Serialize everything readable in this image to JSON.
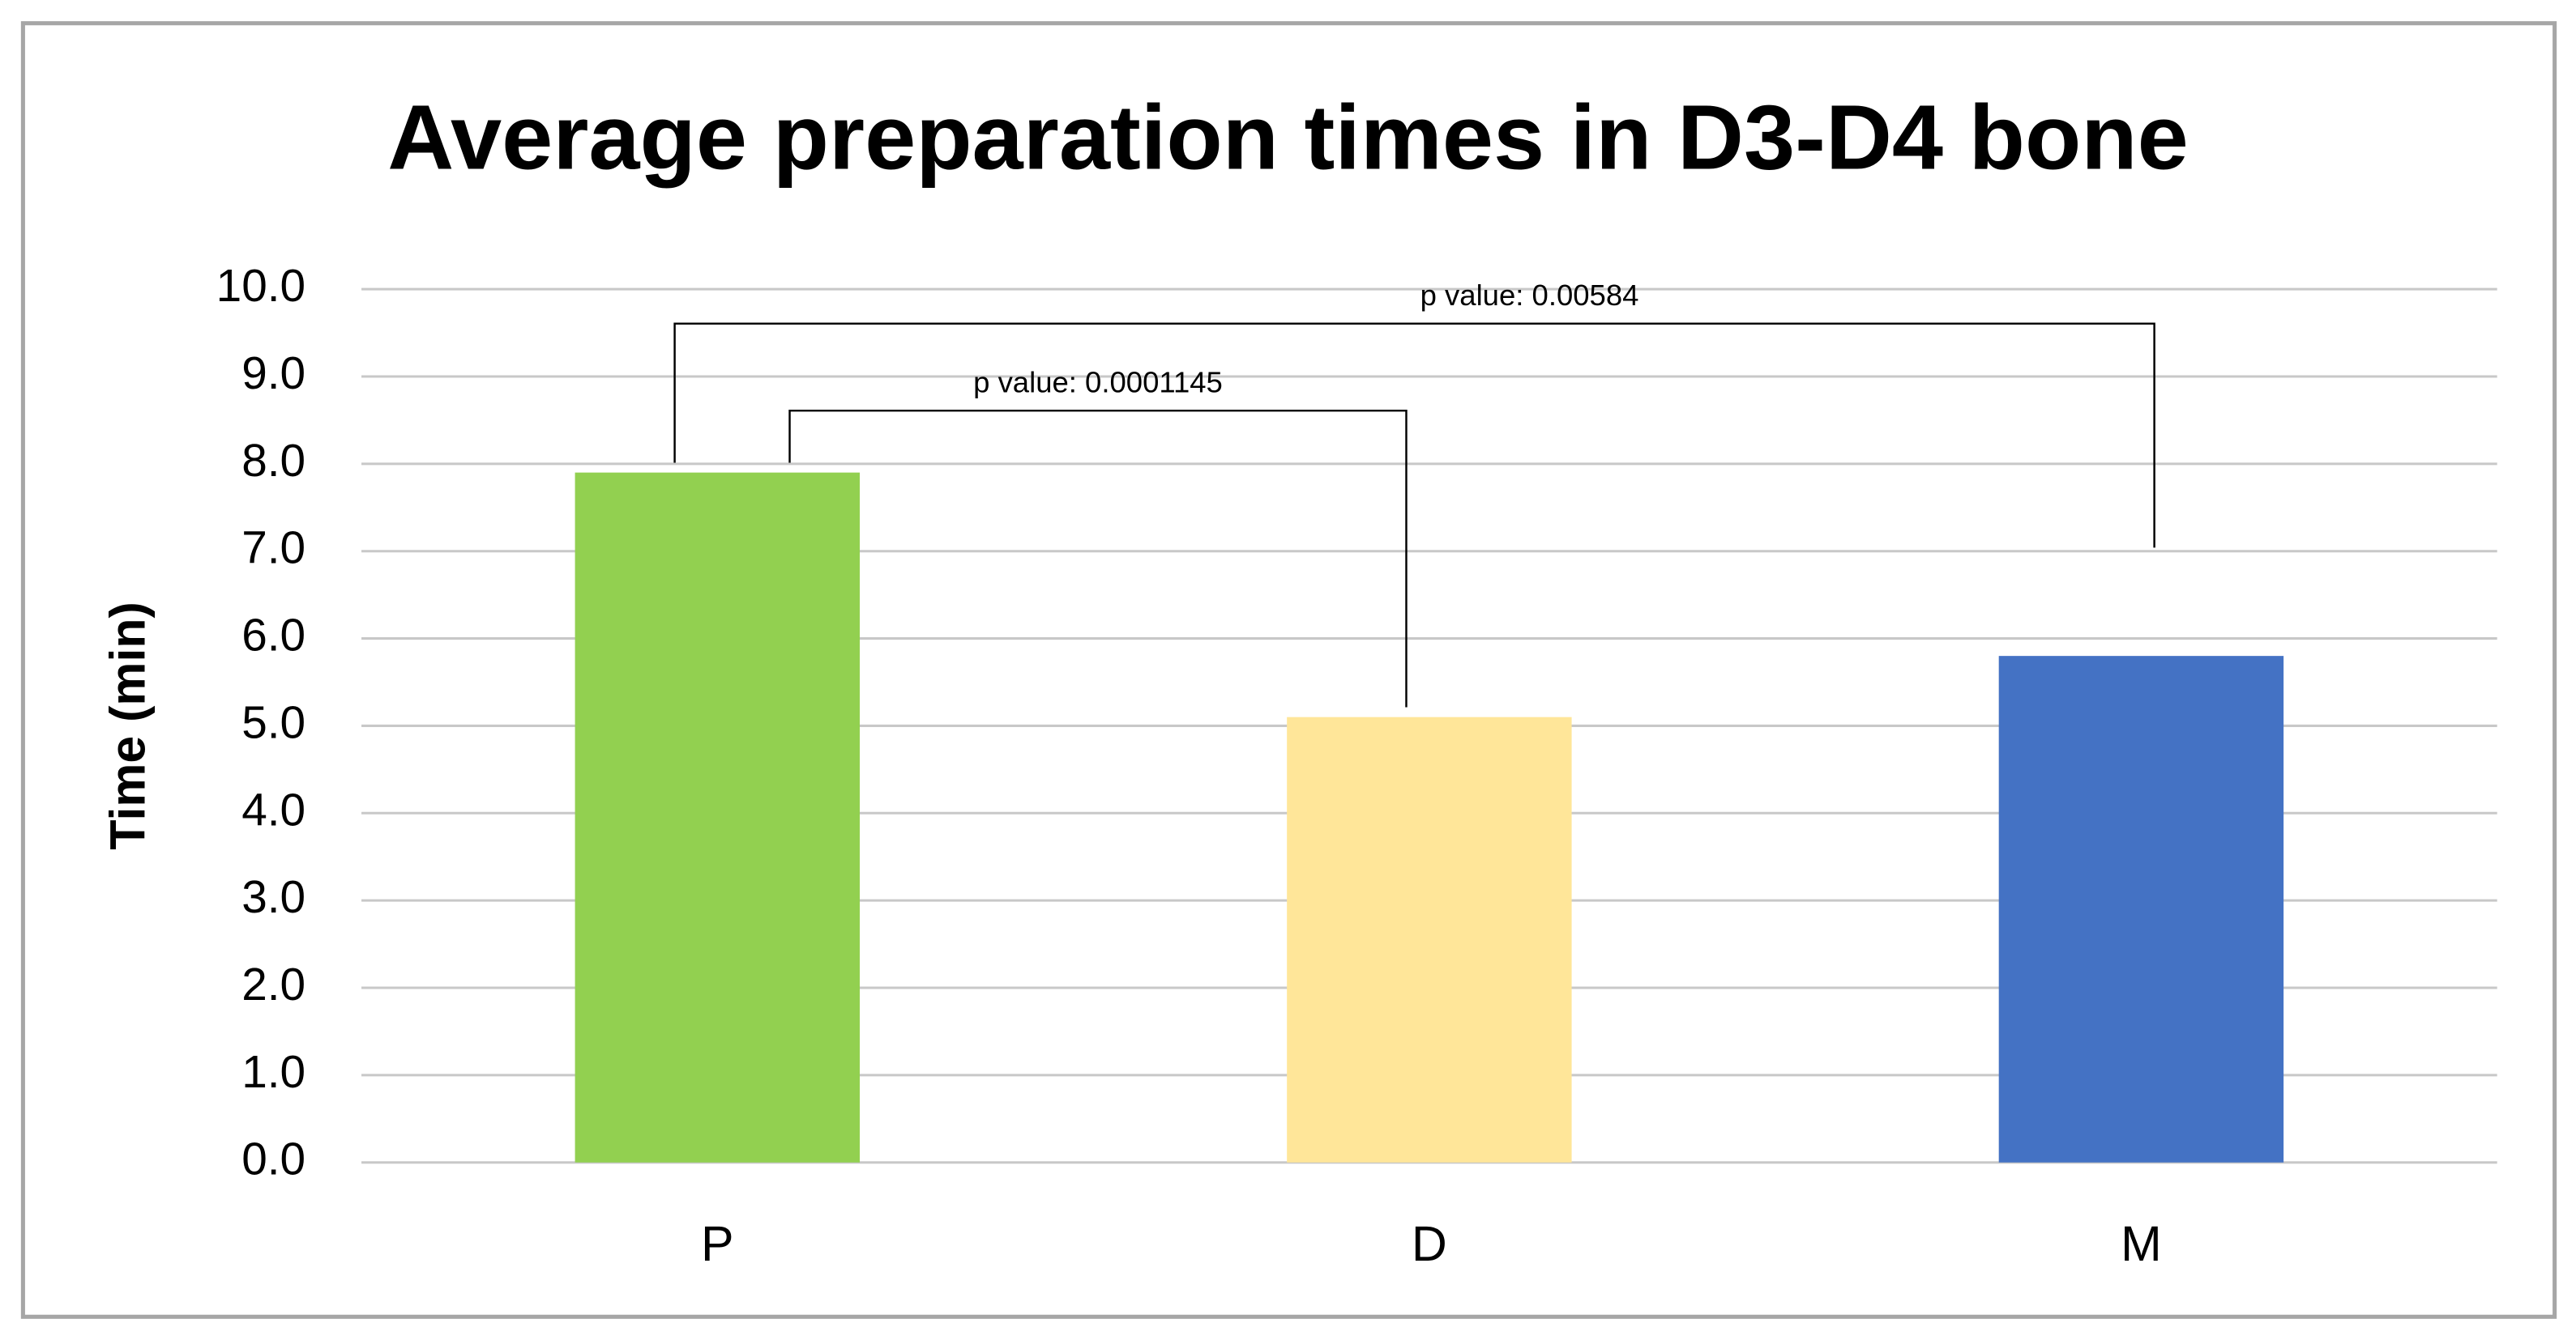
{
  "chart_data": {
    "type": "bar",
    "title": "Average preparation times in D3-D4 bone",
    "y_label": "Time (min)",
    "categories": [
      "P",
      "D",
      "M"
    ],
    "values": [
      7.9,
      5.1,
      5.8
    ],
    "colors": [
      "#92d050",
      "#ffe699",
      "#4472c4"
    ],
    "ylim": [
      0,
      10
    ],
    "yticks": [
      {
        "value": 0,
        "label": "0.0"
      },
      {
        "value": 1,
        "label": "1.0"
      },
      {
        "value": 2,
        "label": "2.0"
      },
      {
        "value": 3,
        "label": "3.0"
      },
      {
        "value": 4,
        "label": "4.0"
      },
      {
        "value": 5,
        "label": "5.0"
      },
      {
        "value": 6,
        "label": "6.0"
      },
      {
        "value": 7,
        "label": "7.0"
      },
      {
        "value": 8,
        "label": "8.0"
      },
      {
        "value": 9,
        "label": "9.0"
      },
      {
        "value": 10,
        "label": "10.0"
      }
    ],
    "grid": true,
    "annotations": [
      "p value: 0.0001145",
      "p value: 0.00584"
    ]
  }
}
